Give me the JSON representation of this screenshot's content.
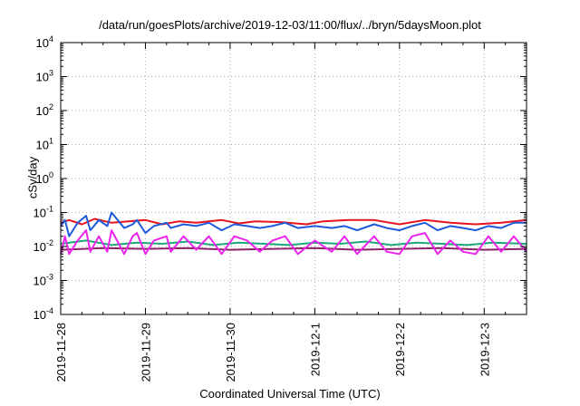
{
  "chart_data": {
    "type": "line",
    "title": "/data/run/goesPlots/archive/2019-12-03/11:00/flux/../bryn/5daysMoon.plot",
    "xlabel": "Coordinated Universal Time (UTC)",
    "ylabel": "cSv/day",
    "yscale": "log",
    "ylim": [
      0.0001,
      10000
    ],
    "ytick_exponents": [
      -4,
      -3,
      -2,
      -1,
      0,
      1,
      2,
      3,
      4
    ],
    "xlim_days": [
      0,
      5.5
    ],
    "xtick_labels": [
      "2019-11-28",
      "2019-11-29",
      "2019-11-30",
      "2019-12-1",
      "2019-12-2",
      "2019-12-3"
    ],
    "grid": true,
    "legend": "none",
    "series": [
      {
        "color": "#e8141c",
        "x": [
          0,
          0.1,
          0.25,
          0.4,
          0.6,
          0.8,
          1.0,
          1.2,
          1.4,
          1.6,
          1.9,
          2.1,
          2.3,
          2.6,
          2.9,
          3.1,
          3.4,
          3.7,
          4.0,
          4.3,
          4.6,
          4.9,
          5.2,
          5.5
        ],
        "y": [
          0.05,
          0.06,
          0.045,
          0.065,
          0.05,
          0.055,
          0.06,
          0.045,
          0.055,
          0.05,
          0.06,
          0.048,
          0.055,
          0.052,
          0.045,
          0.055,
          0.06,
          0.06,
          0.045,
          0.06,
          0.05,
          0.045,
          0.05,
          0.06
        ]
      },
      {
        "color": "#1e5adc",
        "x": [
          0,
          0.05,
          0.1,
          0.2,
          0.3,
          0.35,
          0.45,
          0.55,
          0.6,
          0.75,
          0.85,
          0.9,
          1.0,
          1.1,
          1.25,
          1.3,
          1.45,
          1.6,
          1.75,
          1.9,
          2.05,
          2.2,
          2.35,
          2.5,
          2.65,
          2.8,
          3.0,
          3.2,
          3.35,
          3.5,
          3.7,
          3.85,
          4.0,
          4.15,
          4.3,
          4.45,
          4.6,
          4.75,
          4.9,
          5.05,
          5.2,
          5.35,
          5.5
        ],
        "y": [
          0.04,
          0.06,
          0.02,
          0.05,
          0.08,
          0.03,
          0.06,
          0.04,
          0.1,
          0.035,
          0.045,
          0.06,
          0.025,
          0.04,
          0.05,
          0.035,
          0.045,
          0.04,
          0.05,
          0.03,
          0.045,
          0.04,
          0.035,
          0.04,
          0.05,
          0.035,
          0.04,
          0.035,
          0.04,
          0.03,
          0.045,
          0.035,
          0.03,
          0.04,
          0.05,
          0.03,
          0.04,
          0.035,
          0.03,
          0.04,
          0.035,
          0.05,
          0.05
        ]
      },
      {
        "color": "#1aa87a",
        "x": [
          0,
          0.3,
          0.6,
          0.9,
          1.2,
          1.5,
          1.8,
          2.1,
          2.4,
          2.7,
          3.0,
          3.3,
          3.6,
          3.9,
          4.2,
          4.5,
          4.8,
          5.1,
          5.5
        ],
        "y": [
          0.012,
          0.015,
          0.011,
          0.013,
          0.012,
          0.014,
          0.011,
          0.013,
          0.012,
          0.011,
          0.013,
          0.012,
          0.014,
          0.011,
          0.013,
          0.012,
          0.011,
          0.013,
          0.012
        ]
      },
      {
        "color": "#8a2266",
        "x": [
          0,
          0.5,
          1.0,
          1.5,
          2.0,
          2.5,
          3.0,
          3.5,
          4.0,
          4.5,
          5.0,
          5.5
        ],
        "y": [
          0.008,
          0.009,
          0.0085,
          0.009,
          0.008,
          0.0085,
          0.009,
          0.008,
          0.0085,
          0.009,
          0.008,
          0.0085
        ]
      },
      {
        "color": "#ee22ee",
        "x": [
          0,
          0.05,
          0.1,
          0.2,
          0.3,
          0.35,
          0.45,
          0.55,
          0.6,
          0.75,
          0.85,
          0.9,
          1.0,
          1.1,
          1.25,
          1.3,
          1.45,
          1.6,
          1.75,
          1.9,
          2.05,
          2.2,
          2.35,
          2.5,
          2.65,
          2.8,
          3.0,
          3.2,
          3.35,
          3.5,
          3.7,
          3.85,
          4.0,
          4.15,
          4.3,
          4.45,
          4.6,
          4.75,
          4.9,
          5.05,
          5.2,
          5.35,
          5.5
        ],
        "y": [
          0.006,
          0.02,
          0.006,
          0.015,
          0.03,
          0.007,
          0.02,
          0.007,
          0.03,
          0.006,
          0.02,
          0.025,
          0.006,
          0.015,
          0.02,
          0.007,
          0.02,
          0.008,
          0.02,
          0.006,
          0.02,
          0.015,
          0.007,
          0.015,
          0.02,
          0.006,
          0.015,
          0.007,
          0.02,
          0.006,
          0.02,
          0.007,
          0.006,
          0.02,
          0.025,
          0.006,
          0.015,
          0.007,
          0.006,
          0.02,
          0.007,
          0.02,
          0.007
        ]
      }
    ]
  }
}
